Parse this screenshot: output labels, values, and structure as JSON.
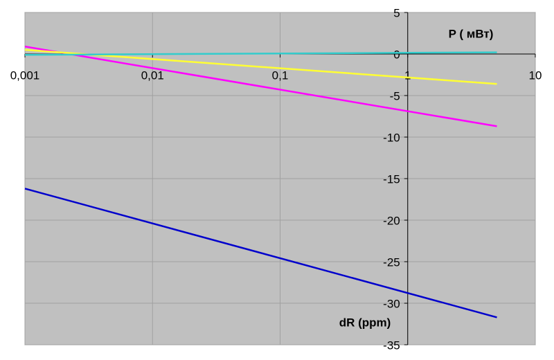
{
  "chart_data": {
    "type": "line",
    "x_axis_label": "P ( мВт)",
    "y_axis_label": "dR (ppm)",
    "x": [
      0.001,
      5
    ],
    "series": [
      {
        "color": "#0000cc",
        "values": [
          -16.2,
          -31.7
        ]
      },
      {
        "color": "#ff00ff",
        "values": [
          0.9,
          -8.7
        ]
      },
      {
        "color": "#ffff33",
        "values": [
          0.5,
          -3.6
        ]
      },
      {
        "color": "#33cccc",
        "values": [
          -0.1,
          0.2
        ]
      }
    ],
    "xlog": true,
    "xlim": [
      0.001,
      10
    ],
    "xticks": [
      {
        "value": 0.001,
        "label": "0,001"
      },
      {
        "value": 0.01,
        "label": "0,01"
      },
      {
        "value": 0.1,
        "label": "0,1"
      },
      1,
      10
    ],
    "ylim": [
      -35,
      5
    ],
    "yticks": [
      5,
      0,
      -5,
      -10,
      -15,
      -20,
      -25,
      -30,
      -35
    ],
    "grid": true
  }
}
